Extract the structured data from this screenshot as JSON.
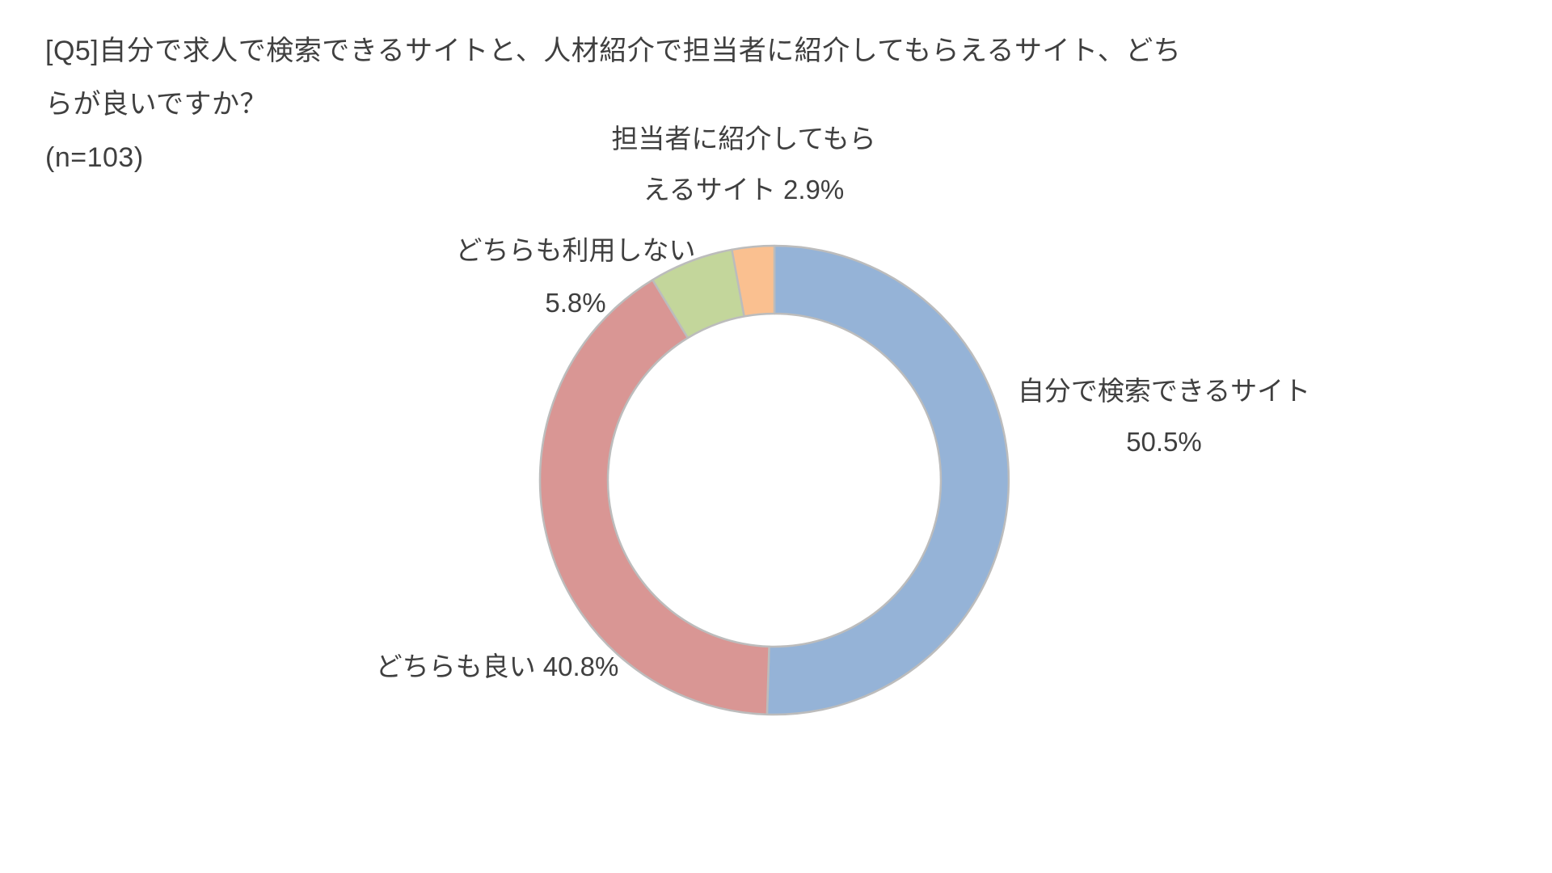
{
  "header": {
    "line1": "[Q5]自分で求人で検索できるサイトと、人材紹介で担当者に紹介してもらえるサイト、どち",
    "line2": "らが良いですか？",
    "line3": "(n=103)"
  },
  "callouts": {
    "agent_site": {
      "line1": "担当者に紹介してもら",
      "line2": "えるサイト 2.9%"
    },
    "neither": {
      "line1": "どちらも利用しない",
      "line2": "5.8%"
    },
    "self_search": {
      "line1": "自分で検索できるサイト",
      "line2": "50.5%"
    },
    "both": {
      "text": "どちらも良い 40.8%"
    }
  },
  "chart_data": {
    "type": "pie",
    "subtype": "donut",
    "title": "[Q5]自分で求人で検索できるサイトと、人材紹介で担当者に紹介してもらえるサイト、どちらが良いですか？",
    "sample_size_label": "(n=103)",
    "unit": "%",
    "direction": "clockwise",
    "start_angle_deg": 0,
    "hole_ratio": 0.71,
    "outline_color": "#bcbcbc",
    "text_color": "#3f3f3f",
    "categories": [
      "自分で検索できるサイト",
      "どちらも良い",
      "どちらも利用しない",
      "担当者に紹介してもらえるサイト"
    ],
    "values": [
      50.5,
      40.8,
      5.8,
      2.9
    ],
    "segments": [
      {
        "label": "自分で検索できるサイト",
        "value": 50.5,
        "color": "#95b3d7"
      },
      {
        "label": "どちらも良い",
        "value": 40.8,
        "color": "#d99694"
      },
      {
        "label": "どちらも利用しない",
        "value": 5.8,
        "color": "#c3d69b"
      },
      {
        "label": "担当者に紹介してもらえるサイト",
        "value": 2.9,
        "color": "#fac090"
      }
    ]
  }
}
